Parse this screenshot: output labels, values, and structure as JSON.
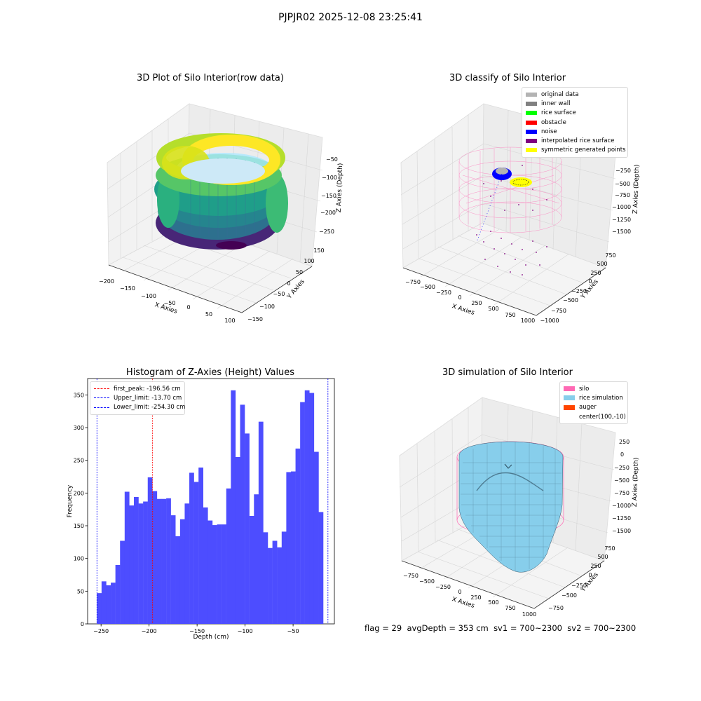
{
  "suptitle": "PJPJR02 2025-12-08 23:25:41",
  "panels": {
    "raw": {
      "title": "3D Plot of Silo Interior(row data)",
      "xlabel": "X Axies",
      "ylabel": "Y Axies",
      "zlabel": "Z Axies (Depth)",
      "xticks": [
        "−200",
        "−150",
        "−100",
        "−50",
        "0",
        "50",
        "100"
      ],
      "yticks": [
        "−150",
        "−100",
        "−50",
        "0",
        "50",
        "100",
        "150"
      ],
      "zticks": [
        "−50",
        "−100",
        "−150",
        "−200",
        "−250"
      ]
    },
    "classify": {
      "title": "3D classify of Silo Interior",
      "xlabel": "X Axies",
      "ylabel": "Y Axies",
      "zlabel": "Z Axies (Depth)",
      "xticks": [
        "−750",
        "−500",
        "−250",
        "0",
        "250",
        "500",
        "750",
        "1000"
      ],
      "yticks": [
        "−1000",
        "−750",
        "−500",
        "−250",
        "0",
        "250",
        "500",
        "750"
      ],
      "zticks": [
        "0",
        "−250",
        "−500",
        "−750",
        "−1000",
        "−1250",
        "−1500"
      ],
      "legend": [
        {
          "label": "original data",
          "color": "#b3b3b3"
        },
        {
          "label": "inner wall",
          "color": "#808080"
        },
        {
          "label": "rice surface",
          "color": "#00ff00"
        },
        {
          "label": "obstacle",
          "color": "#ff0000"
        },
        {
          "label": "noise",
          "color": "#0000ff"
        },
        {
          "label": "interpolated rice surface",
          "color": "#800080"
        },
        {
          "label": "symmetric generated points",
          "color": "#ffff00"
        }
      ]
    },
    "simulation": {
      "title": "3D simulation of Silo Interior",
      "xlabel": "X Axies",
      "ylabel": "Y Axies",
      "zlabel": "Z Axies (Depth)",
      "xticks": [
        "−750",
        "−500",
        "−250",
        "0",
        "250",
        "500",
        "750",
        "1000"
      ],
      "yticks": [
        "−750",
        "−500",
        "−250",
        "0",
        "250",
        "500",
        "750"
      ],
      "zticks": [
        "250",
        "0",
        "−250",
        "−500",
        "−750",
        "−1000",
        "−1250",
        "−1500"
      ],
      "legend": [
        {
          "label": "silo",
          "color": "#ff69b4"
        },
        {
          "label": "rice simulation",
          "color": "#87ceeb"
        },
        {
          "label": "auger",
          "color": "#ff4500"
        },
        {
          "label": "center(100,-10)",
          "color": ""
        }
      ]
    }
  },
  "chart_data": [
    {
      "type": "bar",
      "title": "Histogram of Z-Axies (Height) Values",
      "xlabel": "Depth (cm)",
      "ylabel": "Frequency",
      "xlim": [
        -264,
        -7
      ],
      "ylim": [
        0,
        375
      ],
      "xticks": [
        -250,
        -200,
        -150,
        -100,
        -50
      ],
      "yticks": [
        0,
        50,
        100,
        150,
        200,
        250,
        300,
        350
      ],
      "bin_start": -254.3,
      "bin_width": 4.81,
      "color": "#4d4dff",
      "values": [
        47,
        65,
        59,
        63,
        90,
        127,
        202,
        181,
        194,
        184,
        187,
        224,
        203,
        191,
        191,
        192,
        166,
        134,
        160,
        184,
        231,
        217,
        239,
        178,
        158,
        151,
        152,
        152,
        207,
        357,
        255,
        335,
        291,
        165,
        198,
        309,
        140,
        116,
        127,
        117,
        141,
        232,
        233,
        268,
        339,
        357,
        353,
        263,
        171
      ],
      "lines": [
        {
          "label": "first_peak: -196.56 cm",
          "x": -196.56,
          "color": "#ff0000"
        },
        {
          "label": "Upper_limit: -13.70 cm",
          "x": -13.7,
          "color": "#0000ff"
        },
        {
          "label": "Lower_limit: -254.30 cm",
          "x": -254.3,
          "color": "#0000ff"
        }
      ]
    }
  ],
  "status": {
    "flag": "flag = 29",
    "avg": "avgDepth = 353 cm",
    "sv1": "sv1 = 700~2300",
    "sv2": "sv2 = 700~2300"
  }
}
